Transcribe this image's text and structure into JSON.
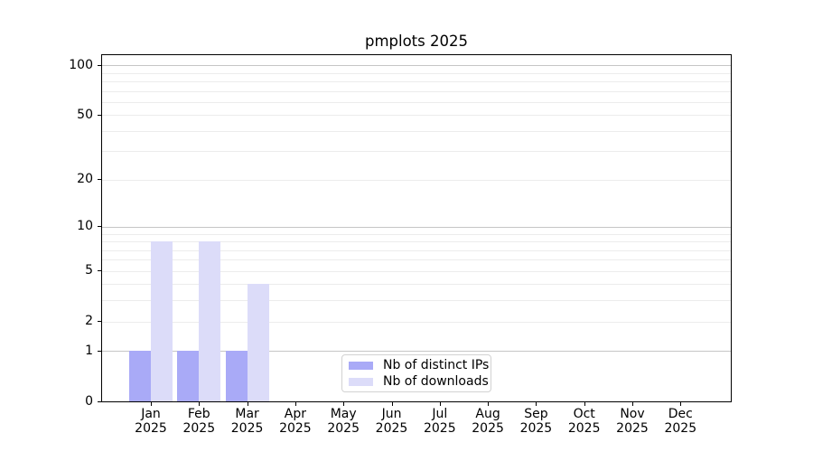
{
  "title": "pmplots 2025",
  "chart_data": {
    "type": "bar",
    "title": "pmplots 2025",
    "x": {
      "categories": [
        "Jan",
        "Feb",
        "Mar",
        "Apr",
        "May",
        "Jun",
        "Jul",
        "Aug",
        "Sep",
        "Oct",
        "Nov",
        "Dec"
      ],
      "year": "2025"
    },
    "series": [
      {
        "name": "Nb of distinct IPs",
        "color": "#a9aaf7",
        "values": [
          1,
          1,
          1,
          0,
          0,
          0,
          0,
          0,
          0,
          0,
          0,
          0
        ]
      },
      {
        "name": "Nb of downloads",
        "color": "#dcdcf9",
        "values": [
          8,
          8,
          4,
          0,
          0,
          0,
          0,
          0,
          0,
          0,
          0,
          0
        ]
      }
    ],
    "y_axis": {
      "scale": "log1p",
      "min": 0,
      "max": 115,
      "tick_labels": [
        0,
        1,
        2,
        5,
        10,
        20,
        50,
        100
      ],
      "major_gridlines": [
        1,
        10,
        100
      ],
      "minor_gridlines": [
        2,
        3,
        4,
        5,
        6,
        7,
        8,
        9,
        20,
        30,
        40,
        50,
        60,
        70,
        80,
        90
      ]
    },
    "legend": {
      "position": "lower center",
      "entries": [
        "Nb of distinct IPs",
        "Nb of downloads"
      ]
    },
    "grid": true,
    "colors": {
      "major_grid": "#c6c6c6",
      "minor_grid": "#ececec",
      "spine": "#000000"
    }
  }
}
